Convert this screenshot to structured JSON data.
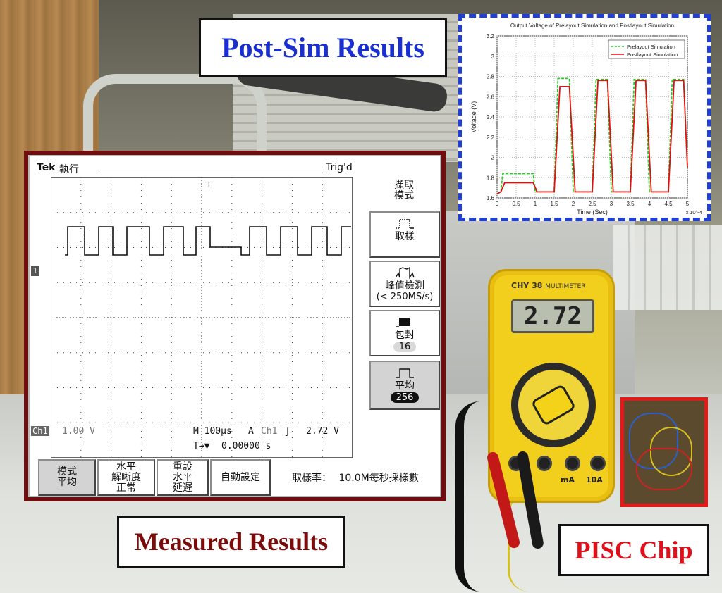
{
  "callouts": {
    "post_sim": "Post-Sim Results",
    "measured": "Measured Results",
    "pisc": "PISC Chip"
  },
  "oscilloscope": {
    "brand": "Tek",
    "status": "執行",
    "trigger_status": "Trig'd",
    "side_menu_title_line1": "擷取",
    "side_menu_title_line2": "模式",
    "side_buttons": [
      {
        "label": "取樣",
        "sub": "",
        "badge": "",
        "selected": false
      },
      {
        "label": "峰值檢測",
        "sub": "(< 250MS/s)",
        "badge": "",
        "selected": false
      },
      {
        "label": "包封",
        "sub": "",
        "badge": "16",
        "selected": false
      },
      {
        "label": "平均",
        "sub": "",
        "badge": "256",
        "selected": true
      }
    ],
    "ch1_label": "Ch1",
    "ch1_scale": "1.00 V",
    "timebase": "M 100μs",
    "trigger_mode": "A",
    "trigger_source": "Ch1",
    "trigger_slope_symbol": "ʃ",
    "trigger_level": "2.72 V",
    "trigger_position_symbol": "T→▼",
    "trigger_offset": "0.00000 s",
    "channel_marker": "1",
    "bottom_buttons": [
      {
        "line1": "模式",
        "line2": "平均",
        "line3": "",
        "selected": true
      },
      {
        "line1": "水平",
        "line2": "解晰度",
        "line3": "正常",
        "selected": false
      },
      {
        "line1": "重設",
        "line2": "水平",
        "line3": "延遲",
        "selected": false
      },
      {
        "line1": "自動設定",
        "line2": "",
        "line3": "",
        "selected": false
      }
    ],
    "sample_rate_label": "取樣率：",
    "sample_rate_value": "10.0M每秒採樣數"
  },
  "multimeter": {
    "brand": "CHY 38",
    "model": "MULTIMETER",
    "reading": "2.72",
    "jack_labels": [
      "mA",
      "10A"
    ]
  },
  "chart_data": {
    "type": "line",
    "title": "Output Voltage of Prelayout Simulation and Postlayout Simulation",
    "xlabel": "Time (Sec)",
    "ylabel": "Voltage (V)",
    "x_multiplier": "x 10^-4",
    "xlim": [
      0,
      5
    ],
    "ylim": [
      1.6,
      3.2
    ],
    "xticks": [
      "0",
      "0.5",
      "1",
      "1.5",
      "2",
      "2.5",
      "3",
      "3.5",
      "4",
      "4.5",
      "5"
    ],
    "yticks": [
      "1.6",
      "1.8",
      "2",
      "2.2",
      "2.4",
      "2.6",
      "2.8",
      "3",
      "3.2"
    ],
    "grid": true,
    "legend_position": "top-right",
    "series": [
      {
        "name": "Prelayout Simulation",
        "color": "#22cc22",
        "style": "dashed",
        "x": [
          0,
          0.1,
          0.15,
          0.95,
          1.0,
          1.5,
          1.6,
          1.9,
          2.0,
          2.5,
          2.6,
          2.9,
          3.0,
          3.5,
          3.6,
          3.9,
          4.0,
          4.5,
          4.6,
          4.9,
          5.0
        ],
        "y": [
          1.64,
          1.66,
          1.84,
          1.84,
          1.66,
          1.66,
          2.78,
          2.78,
          1.66,
          1.66,
          2.77,
          2.77,
          1.66,
          1.66,
          2.77,
          2.77,
          1.66,
          1.66,
          2.77,
          2.77,
          1.9
        ]
      },
      {
        "name": "Postlayout Simulation",
        "color": "#e01010",
        "style": "solid",
        "x": [
          0,
          0.1,
          0.2,
          0.95,
          1.05,
          1.5,
          1.65,
          1.9,
          2.05,
          2.5,
          2.65,
          2.9,
          3.05,
          3.5,
          3.65,
          3.9,
          4.05,
          4.5,
          4.65,
          4.9,
          5.0
        ],
        "y": [
          1.64,
          1.66,
          1.75,
          1.75,
          1.66,
          1.66,
          2.7,
          2.7,
          1.66,
          1.66,
          2.76,
          2.76,
          1.66,
          1.66,
          2.76,
          2.76,
          1.66,
          1.66,
          2.76,
          2.76,
          1.9
        ]
      }
    ]
  }
}
